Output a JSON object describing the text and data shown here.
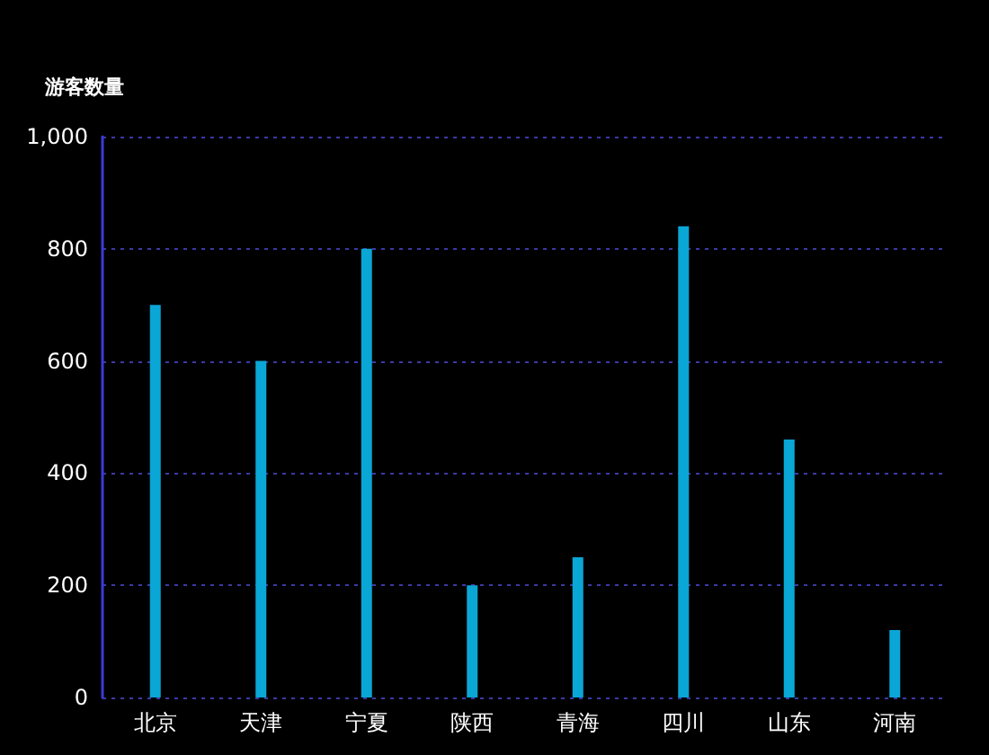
{
  "chart_data": {
    "type": "bar",
    "ylabel": "游客数量",
    "categories": [
      "北京",
      "天津",
      "宁夏",
      "陕西",
      "青海",
      "四川",
      "山东",
      "河南"
    ],
    "values": [
      700,
      600,
      800,
      200,
      250,
      840,
      460,
      120
    ],
    "color": "#0aa6d6",
    "ylim": [
      0,
      1000
    ],
    "yticks": [
      0,
      200,
      400,
      600,
      800,
      {
        "value": 1000,
        "label": "1,000"
      }
    ],
    "grid": "y"
  }
}
